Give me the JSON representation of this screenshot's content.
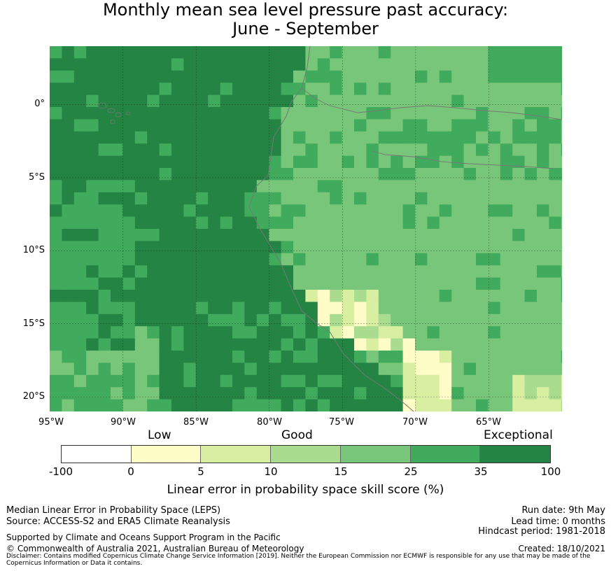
{
  "title": {
    "line1": "Monthly mean sea level pressure past accuracy:",
    "line2": "June - September"
  },
  "map": {
    "lat_labels": [
      "0°",
      "5°S",
      "10°S",
      "15°S",
      "20°S"
    ],
    "lon_labels": [
      "95°W",
      "90°W",
      "85°W",
      "80°W",
      "75°W",
      "70°W",
      "65°W"
    ],
    "lon_range": [
      -95,
      -60
    ],
    "lat_range": [
      -21,
      4
    ],
    "gridlines": true,
    "cell_size_deg": 0.83,
    "colors": [
      "#ffffff",
      "#fefdc8",
      "#d8eea0",
      "#a9dc8e",
      "#78c679",
      "#41ab5d",
      "#238443"
    ],
    "regions": [
      "offshore Pacific: exceptional (35-100)",
      "coastal Ecuador/Peru: 25-35 and 15-25",
      "Amazon interior: 15-25",
      "Peru coast 13°S-18°S: 0-15",
      "Altiplano/Bolivia south: 0-15"
    ]
  },
  "legend": {
    "categories": [
      "Low",
      "Good",
      "Exceptional"
    ],
    "ticks": [
      "-100",
      "0",
      "5",
      "10",
      "15",
      "25",
      "35",
      "100"
    ],
    "colors": [
      "#ffffff",
      "#fefdc8",
      "#d8eea0",
      "#a9dc8e",
      "#78c679",
      "#41ab5d",
      "#238443"
    ],
    "title": "Linear error in probability space skill score (%)"
  },
  "footer": {
    "left1": "Median Linear Error in Probability Space (LEPS)",
    "left2": "Source: ACCESS-S2 and ERA5 Climate Reanalysis",
    "left3": "Supported by Climate and Oceans Support Program in the Pacific",
    "left4": "© Commonwealth of Australia 2021, Australian Bureau of Meteorology",
    "right1": "Run date: 9th May",
    "right2": "Lead time: 0 months",
    "right3": "Hindcast period: 1981-2018",
    "right4": "Created: 18/10/2021",
    "disclaimer": "Disclaimer: Contains modified Copernicus Climate Change Service Information [2019]. Neither the European Commission nor ECMWF is responsible for any use that may be made of the Copernicus Information or Data it contains."
  }
}
